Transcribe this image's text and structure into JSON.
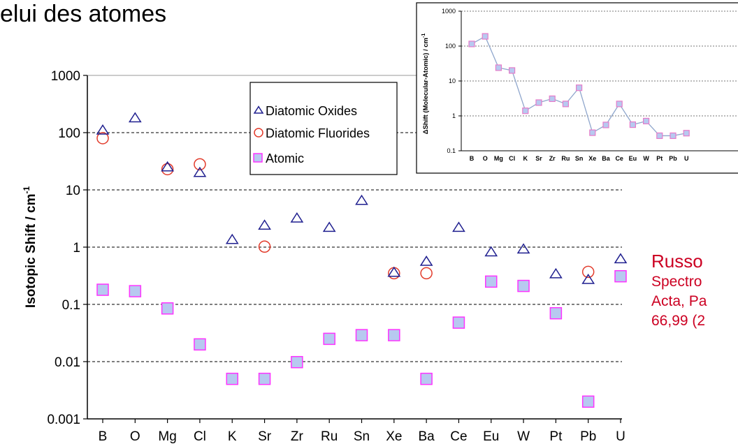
{
  "heading": "elui des atomes",
  "citation": {
    "name": "Russo",
    "lines": [
      "Spectro",
      "Acta, Pa",
      "66,99 (2"
    ]
  },
  "colors": {
    "oxides": "#1f1f8f",
    "fluorides": "#e23a2a",
    "atomic_fill": "#b7c9f0",
    "atomic_stroke": "#ff33ff",
    "inset_line": "#8fa6cc",
    "citation": "#cc0022"
  },
  "chart_data": [
    {
      "type": "scatter",
      "ylabel": "Isotopic Shift / cm",
      "ylabel_sup": "-1",
      "log_y": true,
      "ylim": [
        0.001,
        1000
      ],
      "y_ticks": [
        "0.001",
        "0.01",
        "0.1",
        "1",
        "10",
        "100",
        "1000"
      ],
      "grid": "dashed horizontal at decades",
      "categories": [
        "B",
        "O",
        "Mg",
        "Cl",
        "K",
        "Sr",
        "Zr",
        "Ru",
        "Sn",
        "Xe",
        "Ba",
        "Ce",
        "Eu",
        "W",
        "Pt",
        "Pb",
        "U"
      ],
      "legend_position": "top-center",
      "series": [
        {
          "name": "Diatomic Oxides",
          "marker": "triangle",
          "values": [
            110,
            180,
            25,
            20,
            1.35,
            2.4,
            3.2,
            2.2,
            6.5,
            0.36,
            0.56,
            2.2,
            0.82,
            0.92,
            0.34,
            0.27,
            0.62
          ]
        },
        {
          "name": "Diatomic Fluorides",
          "marker": "circle",
          "values": [
            80,
            null,
            23,
            28,
            null,
            1.02,
            null,
            null,
            null,
            0.35,
            0.35,
            null,
            null,
            null,
            null,
            0.37,
            null
          ]
        },
        {
          "name": "Atomic",
          "marker": "square",
          "values": [
            0.18,
            0.17,
            0.085,
            0.02,
            0.005,
            0.005,
            0.0098,
            0.025,
            0.029,
            0.029,
            0.005,
            0.048,
            0.25,
            0.21,
            0.07,
            0.002,
            0.31
          ]
        }
      ]
    },
    {
      "type": "line",
      "ylabel": "ΔShift (Molecular-Atomic) / cm",
      "ylabel_sup": "-1",
      "log_y": true,
      "ylim": [
        0.1,
        1000
      ],
      "y_ticks": [
        "0.1",
        "1",
        "10",
        "100",
        "1000"
      ],
      "grid": "dotted horizontal at decades",
      "categories": [
        "B",
        "O",
        "Mg",
        "Cl",
        "K",
        "Sr",
        "Zr",
        "Ru",
        "Sn",
        "Xe",
        "Ba",
        "Ce",
        "Eu",
        "W",
        "Pt",
        "Pb",
        "U"
      ],
      "values": [
        115,
        190,
        24,
        20,
        1.4,
        2.4,
        3.1,
        2.2,
        6.4,
        0.33,
        0.55,
        2.2,
        0.56,
        0.71,
        0.27,
        0.27,
        0.32
      ]
    }
  ]
}
